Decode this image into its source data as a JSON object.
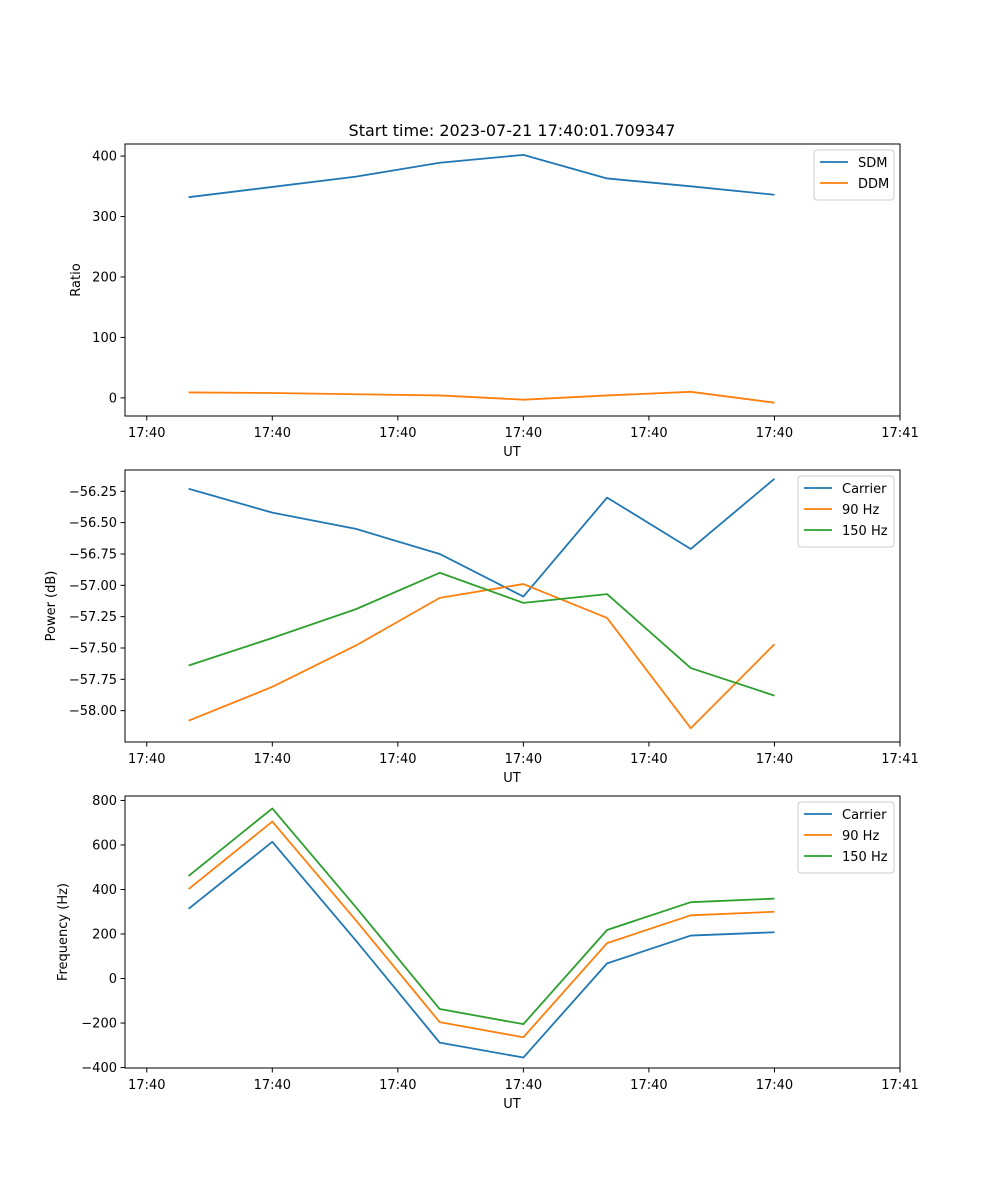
{
  "chart_data": [
    {
      "type": "line",
      "title": "Start time: 2023-07-21 17:40:01.709347",
      "xlabel": "UT",
      "ylabel": "Ratio",
      "x": [
        0.0,
        0.5,
        1.0,
        1.5,
        2.0,
        2.5,
        3.0,
        3.5
      ],
      "xlim": [
        -0.38,
        4.25
      ],
      "ylim": [
        -30,
        420
      ],
      "xticks": [
        -0.25,
        0.5,
        1.25,
        2.0,
        2.75,
        3.5,
        4.25
      ],
      "xticklabels": [
        "17:40",
        "17:40",
        "17:40",
        "17:40",
        "17:40",
        "17:40",
        "17:41"
      ],
      "yticks": [
        0,
        100,
        200,
        300,
        400
      ],
      "yticklabels": [
        "0",
        "100",
        "200",
        "300",
        "400"
      ],
      "legend_position": "top-right",
      "series": [
        {
          "name": "SDM",
          "color": "#1f77b4",
          "values": [
            332,
            349,
            366,
            389,
            402,
            363,
            350,
            336
          ]
        },
        {
          "name": "DDM",
          "color": "#ff7f0e",
          "values": [
            9,
            8,
            6,
            4,
            -3,
            4,
            10,
            -8
          ]
        }
      ]
    },
    {
      "type": "line",
      "title": "",
      "xlabel": "UT",
      "ylabel": "Power (dB)",
      "x": [
        0.0,
        0.5,
        1.0,
        1.5,
        2.0,
        2.5,
        3.0,
        3.5
      ],
      "xlim": [
        -0.38,
        4.25
      ],
      "ylim": [
        -58.25,
        -56.08
      ],
      "xticks": [
        -0.25,
        0.5,
        1.25,
        2.0,
        2.75,
        3.5,
        4.25
      ],
      "xticklabels": [
        "17:40",
        "17:40",
        "17:40",
        "17:40",
        "17:40",
        "17:40",
        "17:41"
      ],
      "yticks": [
        -58.0,
        -57.75,
        -57.5,
        -57.25,
        -57.0,
        -56.75,
        -56.5,
        -56.25
      ],
      "yticklabels": [
        "−58.00",
        "−57.75",
        "−57.50",
        "−57.25",
        "−57.00",
        "−56.75",
        "−56.50",
        "−56.25"
      ],
      "legend_position": "top-right",
      "series": [
        {
          "name": "Carrier",
          "color": "#1f77b4",
          "values": [
            -56.23,
            -56.42,
            -56.55,
            -56.75,
            -57.09,
            -56.3,
            -56.71,
            -56.15
          ]
        },
        {
          "name": "90 Hz",
          "color": "#ff7f0e",
          "values": [
            -58.08,
            -57.81,
            -57.48,
            -57.1,
            -56.99,
            -57.26,
            -58.14,
            -57.47
          ]
        },
        {
          "name": "150 Hz",
          "color": "#2ca02c",
          "values": [
            -57.64,
            -57.42,
            -57.19,
            -56.9,
            -57.14,
            -57.07,
            -57.66,
            -57.88
          ]
        }
      ]
    },
    {
      "type": "line",
      "title": "",
      "xlabel": "UT",
      "ylabel": "Frequency (Hz)",
      "x": [
        0.0,
        0.5,
        1.0,
        1.5,
        2.0,
        2.5,
        3.0,
        3.5
      ],
      "xlim": [
        -0.38,
        4.25
      ],
      "ylim": [
        -402,
        820
      ],
      "xticks": [
        -0.25,
        0.5,
        1.25,
        2.0,
        2.75,
        3.5,
        4.25
      ],
      "xticklabels": [
        "17:40",
        "17:40",
        "17:40",
        "17:40",
        "17:40",
        "17:40",
        "17:41"
      ],
      "yticks": [
        -400,
        -200,
        0,
        200,
        400,
        600,
        800
      ],
      "yticklabels": [
        "−400",
        "−200",
        "0",
        "200",
        "400",
        "600",
        "800"
      ],
      "legend_position": "top-right",
      "series": [
        {
          "name": "Carrier",
          "color": "#1f77b4",
          "values": [
            313,
            614,
            170,
            -288,
            -355,
            68,
            193,
            208
          ]
        },
        {
          "name": "90 Hz",
          "color": "#ff7f0e",
          "values": [
            402,
            705,
            261,
            -196,
            -264,
            159,
            284,
            300
          ]
        },
        {
          "name": "150 Hz",
          "color": "#2ca02c",
          "values": [
            461,
            764,
            320,
            -137,
            -205,
            218,
            343,
            359
          ]
        }
      ]
    }
  ]
}
